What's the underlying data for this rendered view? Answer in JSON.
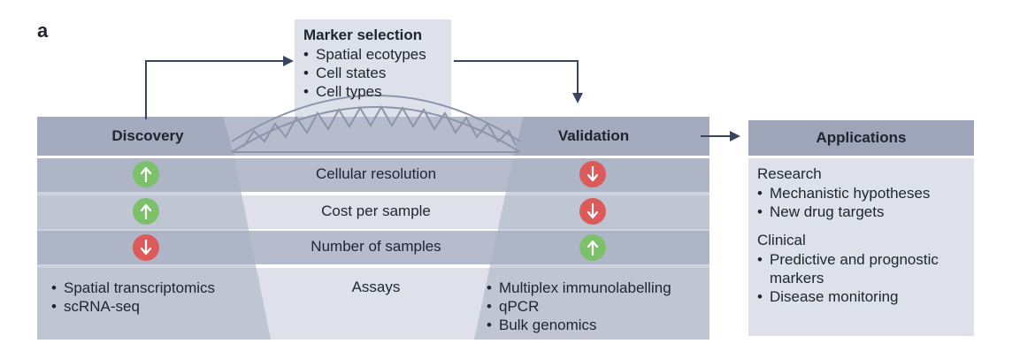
{
  "panel_label": "a",
  "marker_selection": {
    "title": "Marker selection",
    "items": [
      "Spatial ecotypes",
      "Cell states",
      "Cell types"
    ]
  },
  "discovery": {
    "title": "Discovery",
    "assays": [
      "Spatial transcriptomics",
      "scRNA-seq"
    ]
  },
  "validation": {
    "title": "Validation",
    "assays": [
      "Multiplex immunolabelling",
      "qPCR",
      "Bulk genomics"
    ]
  },
  "rows": [
    {
      "label": "Cellular resolution",
      "discovery": "up",
      "validation": "down"
    },
    {
      "label": "Cost per sample",
      "discovery": "up",
      "validation": "down"
    },
    {
      "label": "Number of samples",
      "discovery": "down",
      "validation": "up"
    }
  ],
  "assays_label": "Assays",
  "applications": {
    "title": "Applications",
    "research_title": "Research",
    "research_items": [
      "Mechanistic hypotheses",
      "New drug targets"
    ],
    "clinical_title": "Clinical",
    "clinical_items": [
      "Predictive and prognostic markers",
      "Disease monitoring"
    ]
  },
  "colors": {
    "band_dark": "#b6bccc",
    "band_light": "#dee1e9",
    "header_dark": "#8d95ab",
    "arrow_line": "#3a4661",
    "up_green": "#7cc16a",
    "down_red": "#dd5a5a"
  }
}
